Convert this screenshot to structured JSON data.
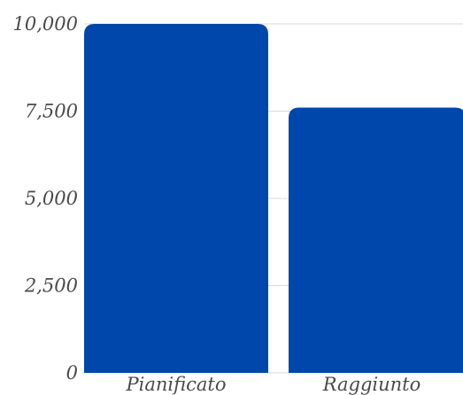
{
  "chart_data": {
    "type": "bar",
    "title": "",
    "xlabel": "",
    "ylabel": "",
    "categories": [
      "Pianificato",
      "Raggiunto"
    ],
    "values": [
      10000,
      7600
    ],
    "ylim": [
      0,
      10000
    ],
    "yticks": [
      "0",
      "2,500",
      "5,000",
      "7,500",
      "10,000"
    ],
    "ytick_values": [
      0,
      2500,
      5000,
      7500,
      10000
    ],
    "grid": true,
    "bar_color": "#0047ab",
    "grid_color": "#d9d9d9"
  }
}
